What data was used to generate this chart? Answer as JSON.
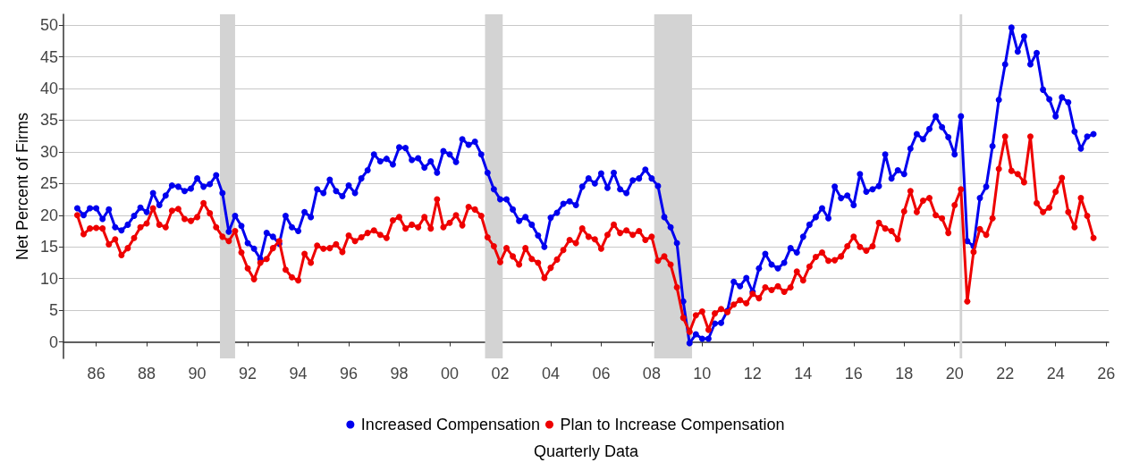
{
  "chart_data": {
    "type": "line",
    "xlabel": "Quarterly Data",
    "ylabel": "Net Percent of Firms",
    "x": [
      1985.25,
      1985.5,
      1985.75,
      1986,
      1986.25,
      1986.5,
      1986.75,
      1987,
      1987.25,
      1987.5,
      1987.75,
      1988,
      1988.25,
      1988.5,
      1988.75,
      1989,
      1989.25,
      1989.5,
      1989.75,
      1990,
      1990.25,
      1990.5,
      1990.75,
      1991,
      1991.25,
      1991.5,
      1991.75,
      1992,
      1992.25,
      1992.5,
      1992.75,
      1993,
      1993.25,
      1993.5,
      1993.75,
      1994,
      1994.25,
      1994.5,
      1994.75,
      1995,
      1995.25,
      1995.5,
      1995.75,
      1996,
      1996.25,
      1996.5,
      1996.75,
      1997,
      1997.25,
      1997.5,
      1997.75,
      1998,
      1998.25,
      1998.5,
      1998.75,
      1999,
      1999.25,
      1999.5,
      1999.75,
      2000,
      2000.25,
      2000.5,
      2000.75,
      2001,
      2001.25,
      2001.5,
      2001.75,
      2002,
      2002.25,
      2002.5,
      2002.75,
      2003,
      2003.25,
      2003.5,
      2003.75,
      2004,
      2004.25,
      2004.5,
      2004.75,
      2005,
      2005.25,
      2005.5,
      2005.75,
      2006,
      2006.25,
      2006.5,
      2006.75,
      2007,
      2007.25,
      2007.5,
      2007.75,
      2008,
      2008.25,
      2008.5,
      2008.75,
      2009,
      2009.25,
      2009.5,
      2009.75,
      2010,
      2010.25,
      2010.5,
      2010.75,
      2011,
      2011.25,
      2011.5,
      2011.75,
      2012,
      2012.25,
      2012.5,
      2012.75,
      2013,
      2013.25,
      2013.5,
      2013.75,
      2014,
      2014.25,
      2014.5,
      2014.75,
      2015,
      2015.25,
      2015.5,
      2015.75,
      2016,
      2016.25,
      2016.5,
      2016.75,
      2017,
      2017.25,
      2017.5,
      2017.75,
      2018,
      2018.25,
      2018.5,
      2018.75,
      2019,
      2019.25,
      2019.5,
      2019.75,
      2020,
      2020.25,
      2020.5,
      2020.75,
      2021,
      2021.25,
      2021.5,
      2021.75,
      2022,
      2022.25,
      2022.5,
      2022.75,
      2023,
      2023.25,
      2023.5,
      2023.75,
      2024,
      2024.25,
      2024.5,
      2024.75,
      2025,
      2025.25,
      2025.5
    ],
    "series": [
      {
        "name": "Increased Compensation",
        "color": "#0000ee",
        "values": [
          21.1,
          20.0,
          21.1,
          21.1,
          19.4,
          20.9,
          18.1,
          17.6,
          18.5,
          19.9,
          21.2,
          20.5,
          23.5,
          21.6,
          23.1,
          24.7,
          24.5,
          23.8,
          24.2,
          25.8,
          24.5,
          24.9,
          26.3,
          23.5,
          17.4,
          19.9,
          18.3,
          15.6,
          14.7,
          13.1,
          17.2,
          16.6,
          15.5,
          19.9,
          18.1,
          17.5,
          20.5,
          19.7,
          24.1,
          23.5,
          25.6,
          23.8,
          23.0,
          24.7,
          23.5,
          25.8,
          27.1,
          29.6,
          28.5,
          28.9,
          28.0,
          30.7,
          30.6,
          28.7,
          29.0,
          27.5,
          28.5,
          26.7,
          30.1,
          29.6,
          28.4,
          32.0,
          31.1,
          31.6,
          29.6,
          26.7,
          24.1,
          22.5,
          22.5,
          20.9,
          19.1,
          19.7,
          18.5,
          16.8,
          15.0,
          19.6,
          20.4,
          21.8,
          22.2,
          21.6,
          24.5,
          25.8,
          25.0,
          26.6,
          24.3,
          26.7,
          24.1,
          23.5,
          25.5,
          25.8,
          27.2,
          25.8,
          24.6,
          19.7,
          18.1,
          15.6,
          6.4,
          -0.2,
          1.2,
          0.5,
          0.5,
          2.9,
          3.0,
          4.9,
          9.5,
          8.8,
          10.1,
          7.9,
          11.6,
          13.9,
          12.2,
          11.6,
          12.5,
          14.8,
          14.1,
          16.6,
          18.5,
          19.7,
          21.1,
          19.5,
          24.5,
          22.7,
          23.1,
          21.6,
          26.5,
          23.7,
          24.1,
          24.6,
          29.6,
          25.8,
          27.1,
          26.5,
          30.5,
          32.8,
          32.0,
          33.6,
          35.6,
          33.9,
          32.3,
          29.6,
          35.6,
          15.9,
          15.1,
          22.7,
          24.5,
          30.9,
          38.2,
          43.8,
          49.6,
          45.8,
          48.2,
          43.8,
          45.6,
          39.8,
          38.3,
          35.6,
          38.6,
          37.8,
          33.2,
          30.5,
          32.4,
          32.8
        ]
      },
      {
        "name": "Plan to Increase Compensation",
        "color": "#ee0000",
        "values": [
          20.0,
          17.0,
          17.9,
          18.0,
          17.9,
          15.4,
          16.2,
          13.7,
          14.8,
          16.4,
          18.1,
          18.7,
          21.1,
          18.5,
          18.1,
          20.7,
          21.0,
          19.4,
          19.1,
          19.7,
          21.9,
          20.3,
          18.1,
          16.6,
          15.9,
          17.5,
          14.1,
          11.6,
          9.9,
          12.5,
          13.1,
          14.8,
          15.9,
          11.4,
          10.2,
          9.7,
          13.9,
          12.5,
          15.2,
          14.7,
          14.8,
          15.4,
          14.2,
          16.8,
          15.9,
          16.5,
          17.2,
          17.6,
          16.9,
          16.4,
          19.2,
          19.7,
          17.9,
          18.5,
          18.1,
          19.7,
          17.9,
          22.5,
          18.1,
          18.8,
          20.0,
          18.4,
          21.3,
          20.9,
          19.9,
          16.5,
          15.1,
          12.6,
          14.8,
          13.5,
          12.2,
          14.8,
          13.1,
          12.5,
          10.1,
          11.7,
          13.0,
          14.5,
          16.1,
          15.6,
          17.9,
          16.6,
          16.2,
          14.7,
          16.9,
          18.5,
          17.2,
          17.6,
          16.9,
          17.5,
          16.1,
          16.6,
          12.8,
          13.5,
          12.2,
          8.6,
          3.8,
          1.6,
          4.2,
          4.8,
          1.9,
          4.5,
          5.2,
          4.7,
          5.9,
          6.6,
          6.1,
          7.6,
          6.9,
          8.6,
          8.2,
          8.8,
          7.9,
          8.6,
          11.1,
          9.7,
          11.9,
          13.4,
          14.1,
          12.8,
          12.9,
          13.5,
          15.1,
          16.6,
          15.0,
          14.4,
          15.1,
          18.8,
          17.9,
          17.5,
          16.2,
          20.6,
          23.8,
          20.5,
          22.3,
          22.7,
          20.0,
          19.5,
          17.2,
          21.6,
          24.1,
          6.4,
          14.2,
          17.8,
          16.9,
          19.5,
          27.3,
          32.4,
          27.0,
          26.5,
          25.2,
          32.4,
          21.9,
          20.5,
          21.2,
          23.7,
          25.9,
          20.5,
          18.1,
          22.7,
          19.9,
          16.4
        ]
      }
    ],
    "xlim": [
      1984.7,
      2026.1
    ],
    "xticks": [
      {
        "value": 1986,
        "label": "86"
      },
      {
        "value": 1988,
        "label": "88"
      },
      {
        "value": 1990,
        "label": "90"
      },
      {
        "value": 1992,
        "label": "92"
      },
      {
        "value": 1994,
        "label": "94"
      },
      {
        "value": 1996,
        "label": "96"
      },
      {
        "value": 1998,
        "label": "98"
      },
      {
        "value": 2000,
        "label": "00"
      },
      {
        "value": 2002,
        "label": "02"
      },
      {
        "value": 2004,
        "label": "04"
      },
      {
        "value": 2006,
        "label": "06"
      },
      {
        "value": 2008,
        "label": "08"
      },
      {
        "value": 2010,
        "label": "10"
      },
      {
        "value": 2012,
        "label": "12"
      },
      {
        "value": 2014,
        "label": "14"
      },
      {
        "value": 2016,
        "label": "16"
      },
      {
        "value": 2018,
        "label": "18"
      },
      {
        "value": 2020,
        "label": "20"
      },
      {
        "value": 2022,
        "label": "22"
      },
      {
        "value": 2024,
        "label": "24"
      },
      {
        "value": 2026,
        "label": "26"
      }
    ],
    "ylim": [
      -2.6,
      51.7
    ],
    "yticks": [
      0,
      5,
      10,
      15,
      20,
      25,
      30,
      35,
      40,
      45,
      50
    ],
    "bands": [
      {
        "axis": "x",
        "from": 1990.9,
        "to": 1991.5,
        "color": "#d3d3d3"
      },
      {
        "axis": "x",
        "from": 2001.4,
        "to": 2002.1,
        "color": "#d3d3d3"
      },
      {
        "axis": "x",
        "from": 2008.1,
        "to": 2009.6,
        "color": "#d3d3d3"
      },
      {
        "axis": "x",
        "from": 2020.2,
        "to": 2020.3,
        "color": "#d3d3d3"
      }
    ],
    "grid": "y",
    "legend": "bottom",
    "marker": "circle",
    "line_style": "solid"
  }
}
